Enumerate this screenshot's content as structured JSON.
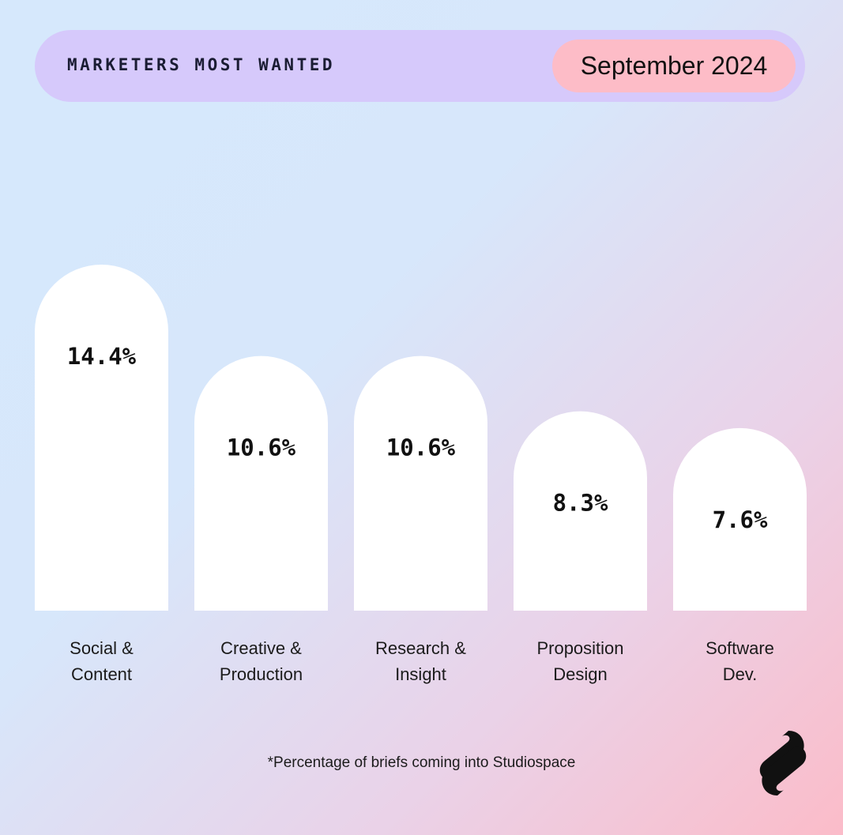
{
  "header": {
    "title": "MARKETERS MOST WANTED",
    "date_badge": "September 2024"
  },
  "chart_data": {
    "type": "bar",
    "categories": [
      [
        "Social &",
        "Content"
      ],
      [
        "Creative &",
        "Production"
      ],
      [
        "Research &",
        "Insight"
      ],
      [
        "Proposition",
        "Design"
      ],
      [
        "Software",
        "Dev."
      ]
    ],
    "values": [
      14.4,
      10.6,
      10.6,
      8.3,
      7.6
    ],
    "value_labels": [
      "14.4%",
      "10.6%",
      "10.6%",
      "8.3%",
      "7.6%"
    ],
    "ylim": [
      0,
      14.4
    ],
    "grid": false,
    "legend": "none"
  },
  "footnote": "*Percentage of briefs coming into Studiospace",
  "logo": {
    "icon": "studiospace-logo-icon",
    "color": "#111111"
  },
  "colors": {
    "bar": "#ffffff",
    "header_pill": "#d6c9fb",
    "date_badge": "#fdbcc7",
    "text": "#111111"
  }
}
